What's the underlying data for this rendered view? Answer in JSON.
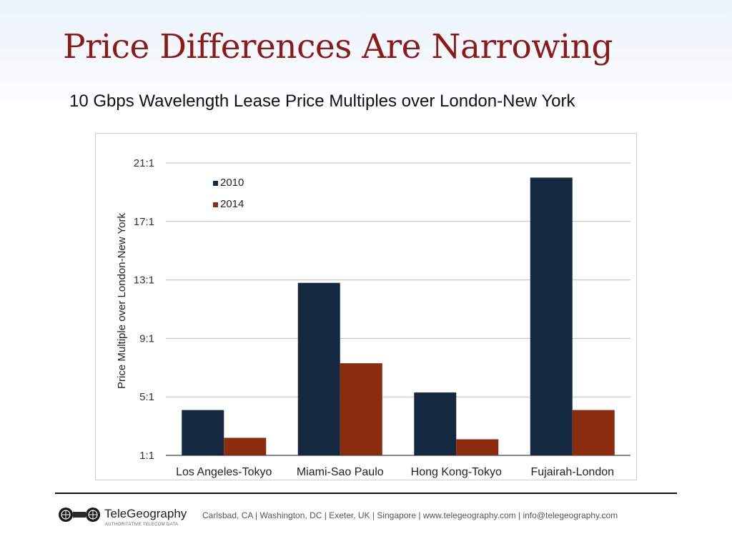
{
  "slide": {
    "title": "Price Differences Are Narrowing",
    "subtitle": "10 Gbps Wavelength Lease Price Multiples over London-New York"
  },
  "chart_data": {
    "type": "bar",
    "title": "",
    "xlabel": "",
    "ylabel": "Price Multiple over London-New York",
    "categories": [
      "Los Angeles-Tokyo",
      "Miami-Sao Paulo",
      "Hong Kong-Tokyo",
      "Fujairah-London"
    ],
    "series": [
      {
        "name": "2010",
        "color": "#14283f",
        "values": [
          4.1,
          12.8,
          5.3,
          20.0
        ]
      },
      {
        "name": "2014",
        "color": "#8b2c0e",
        "values": [
          2.2,
          7.3,
          2.1,
          4.1
        ]
      }
    ],
    "ylim": [
      1,
      21
    ],
    "yticks": [
      1,
      5,
      9,
      13,
      17,
      21
    ],
    "ytick_labels": [
      "1:1",
      "5:1",
      "9:1",
      "13:1",
      "17:1",
      "21:1"
    ],
    "grid": true,
    "legend_position": "top-left",
    "colors": {
      "grid": "#bdbdbd",
      "axis": "#444444",
      "text": "#333333"
    }
  },
  "footer": {
    "logo_name": "TeleGeography",
    "logo_tagline": "AUTHORITATIVE TELECOM DATA",
    "contact": "Carlsbad, CA | Washington, DC | Exeter, UK | Singapore | www.telegeography.com | info@telegeography.com"
  }
}
